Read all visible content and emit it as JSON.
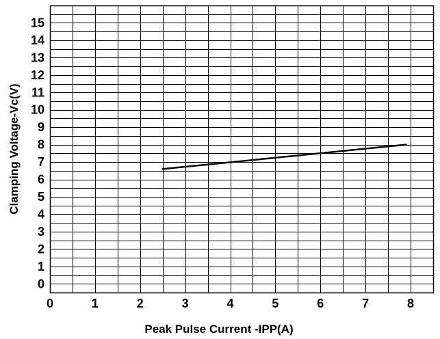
{
  "chart_data": {
    "type": "line",
    "title": "",
    "xlabel": "Peak Pulse Current -IPP(A)",
    "ylabel": "Clamping Voltage-Vc(V)",
    "xlim": [
      0,
      8.5
    ],
    "ylim": [
      -0.5,
      16
    ],
    "x_ticks": [
      0,
      1,
      2,
      3,
      4,
      5,
      6,
      7,
      8
    ],
    "x_tick_labels": [
      "0",
      "1",
      "2",
      "3",
      "4",
      "5",
      "6",
      "7",
      "8"
    ],
    "y_ticks": [
      0,
      1,
      2,
      3,
      4,
      5,
      6,
      7,
      8,
      9,
      10,
      11,
      12,
      13,
      14,
      15
    ],
    "y_tick_labels": [
      "0",
      "1",
      "2",
      "3",
      "4",
      "5",
      "6",
      "7",
      "8",
      "9",
      "10",
      "11",
      "12",
      "13",
      "14",
      "15"
    ],
    "x_minor_step": 0.5,
    "y_minor_step": 0.5,
    "grid": true,
    "legend": "none",
    "colors": {
      "line": "#000000",
      "grid": "#000000",
      "background": "#ffffff"
    },
    "series": [
      {
        "x": [
          2.5,
          7.9
        ],
        "y": [
          6.6,
          8.0
        ]
      }
    ]
  }
}
